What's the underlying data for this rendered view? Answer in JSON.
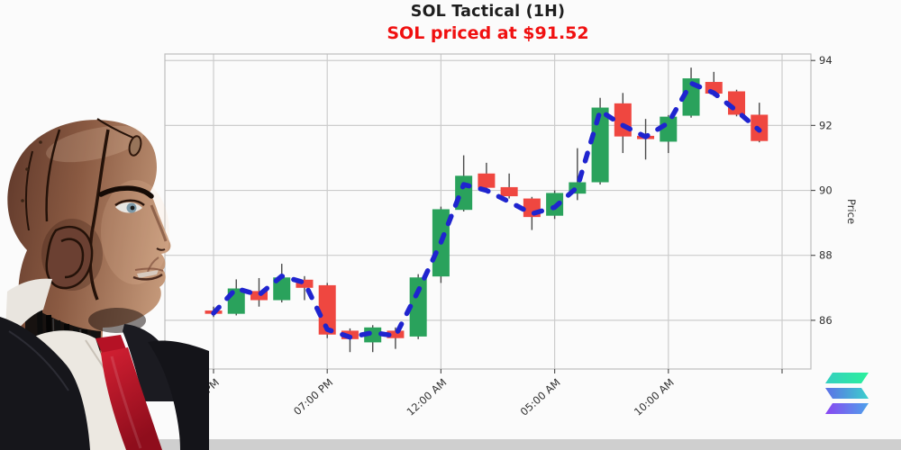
{
  "header": {
    "title": "SOL Tactical (1H)",
    "subtitle": "SOL priced at $91.52"
  },
  "watermark": {
    "icon": "solana-logo",
    "colors": [
      "#2bf09c",
      "#3ad0cc",
      "#8a45f2"
    ]
  },
  "illustration": {
    "description": "robot businessman in suit with red tie, facing chart"
  },
  "chart_data": {
    "type": "candlestick",
    "title": "SOL Tactical (1H)",
    "subtitle": "SOL priced at $91.52",
    "symbol": "SOL",
    "interval": "1H",
    "current_price": 91.52,
    "ylabel": "Price",
    "y_axis_side": "right",
    "grid": true,
    "ylim": [
      84.5,
      94.2
    ],
    "y_ticks": [
      86,
      88,
      90,
      92,
      94
    ],
    "x_tick_positions": [
      0,
      5,
      10,
      15,
      20,
      25
    ],
    "x_tick_labels": [
      "02:00 PM",
      "07:00 PM",
      "12:00 AM",
      "05:00 AM",
      "10:00 AM",
      ""
    ],
    "times": [
      "02:00 PM",
      "03:00 PM",
      "04:00 PM",
      "05:00 PM",
      "06:00 PM",
      "07:00 PM",
      "08:00 PM",
      "09:00 PM",
      "10:00 PM",
      "11:00 PM",
      "12:00 AM",
      "01:00 AM",
      "02:00 AM",
      "03:00 AM",
      "04:00 AM",
      "05:00 AM",
      "06:00 AM",
      "07:00 AM",
      "08:00 AM",
      "09:00 AM",
      "10:00 AM",
      "11:00 AM",
      "12:00 PM",
      "01:00 PM",
      "02:00 PM"
    ],
    "ohlc_format": [
      "open",
      "high",
      "low",
      "close"
    ],
    "candles": [
      [
        86.3,
        86.42,
        86.1,
        86.2
      ],
      [
        86.2,
        87.26,
        86.15,
        86.98
      ],
      [
        86.9,
        87.3,
        86.42,
        86.62
      ],
      [
        86.62,
        87.74,
        86.55,
        87.32
      ],
      [
        87.25,
        87.36,
        86.62,
        87.0
      ],
      [
        87.08,
        87.15,
        85.45,
        85.56
      ],
      [
        85.68,
        85.75,
        85.02,
        85.42
      ],
      [
        85.32,
        85.85,
        85.02,
        85.78
      ],
      [
        85.68,
        85.78,
        85.12,
        85.45
      ],
      [
        85.5,
        87.42,
        85.42,
        87.32
      ],
      [
        87.35,
        89.5,
        87.15,
        89.42
      ],
      [
        89.4,
        91.08,
        89.35,
        90.45
      ],
      [
        90.52,
        90.85,
        90.0,
        90.08
      ],
      [
        90.1,
        90.52,
        89.75,
        89.82
      ],
      [
        89.75,
        89.8,
        88.78,
        89.18
      ],
      [
        89.22,
        90.0,
        89.12,
        89.92
      ],
      [
        89.9,
        91.3,
        89.7,
        90.25
      ],
      [
        90.25,
        92.85,
        90.18,
        92.55
      ],
      [
        92.68,
        93.0,
        91.15,
        91.66
      ],
      [
        91.68,
        92.2,
        90.95,
        91.58
      ],
      [
        91.5,
        92.32,
        91.15,
        92.27
      ],
      [
        92.3,
        93.78,
        92.24,
        93.45
      ],
      [
        93.34,
        93.65,
        92.9,
        92.98
      ],
      [
        93.05,
        93.1,
        92.28,
        92.33
      ],
      [
        92.33,
        92.7,
        91.48,
        91.52
      ]
    ],
    "ma_series": {
      "name": "dashed-trend-ma",
      "style": "dashed",
      "color": "#1f24cf",
      "values": [
        86.22,
        86.98,
        86.78,
        87.36,
        87.16,
        85.72,
        85.48,
        85.62,
        85.52,
        86.9,
        88.4,
        90.18,
        90.0,
        89.65,
        89.28,
        89.48,
        90.1,
        92.45,
        92.0,
        91.65,
        92.08,
        93.3,
        93.0,
        92.45,
        91.85
      ]
    },
    "colors": {
      "up": "#2aa25c",
      "down": "#ef4740",
      "wick": "#4a4a4a",
      "grid": "#cccccc",
      "spine": "#bdbdbd",
      "tick_text": "#303030"
    }
  }
}
